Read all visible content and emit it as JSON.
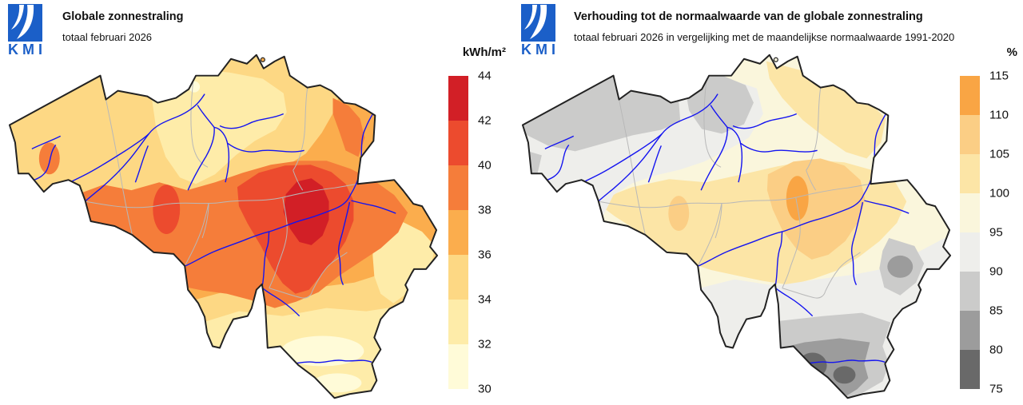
{
  "map": {
    "region": "België / Belgium",
    "border_color": "#222222",
    "river_color": "#1414f0",
    "province_border_color": "#b8b8b8",
    "background": "#ffffff"
  },
  "left_panel": {
    "logo": {
      "text": "KMI",
      "color": "#1b5fc8"
    },
    "title": "Globale zonnestraling",
    "subtitle": "totaal februari 2026",
    "scale": {
      "unit": "kWh/m²",
      "ticks": [
        "44",
        "42",
        "40",
        "38",
        "36",
        "34",
        "32",
        "30"
      ],
      "colors": [
        "#d21f26",
        "#ec4b2e",
        "#f57d3a",
        "#fbad4d",
        "#fdd884",
        "#feeca9",
        "#fffbd8"
      ]
    }
  },
  "right_panel": {
    "logo": {
      "text": "KMI",
      "color": "#1b5fc8"
    },
    "title": "Verhouding tot de normaalwaarde van de globale zonnestraling",
    "subtitle": "totaal februari 2026 in vergelijking met de maandelijkse normaalwaarde 1991-2020",
    "scale": {
      "unit": "%",
      "ticks": [
        "115",
        "110",
        "105",
        "100",
        "95",
        "90",
        "85",
        "80",
        "75"
      ],
      "colors": [
        "#f9a544",
        "#fbce85",
        "#fce5a6",
        "#faf6dc",
        "#eeeeeb",
        "#cbcbca",
        "#9c9c9c",
        "#696969"
      ]
    }
  },
  "chart_data": [
    {
      "type": "heatmap",
      "title": "Globale zonnestraling",
      "subtitle": "totaal februari 2026",
      "unit": "kWh/m²",
      "legend_bins": [
        30,
        32,
        34,
        36,
        38,
        40,
        42,
        44
      ],
      "legend_position": "right",
      "notes": "Filled contour map of Belgium. Maximum 42-44 kWh/m² in the centre-east (Hesbaye region east of Namur); 40-42 there and in a small zone south of Brussels; 38-40 over a broad central band and eastern Limburg; 36-38 over most of Flanders and the west; 34-36 along the northern strip and northern Ardennes; 32-34 over the far north-centre, the eastern border bulge and southern Luxembourg province; 30-32 minima near the southern tip (Gaume) and a tiny north-central spot."
    },
    {
      "type": "heatmap",
      "title": "Verhouding tot de normaalwaarde van de globale zonnestraling",
      "subtitle": "totaal februari 2026 in vergelijking met de maandelijkse normaalwaarde 1991-2020",
      "unit": "%",
      "legend_bins": [
        75,
        80,
        85,
        90,
        95,
        100,
        105,
        110,
        115
      ],
      "legend_position": "right",
      "notes": "Ratio to the 1991-2020 normal. 100-110% over central Belgium with a 110-115% core in the Hesbaye east of Namur and a small >105% spot south of Brussels; 95-100% over most of the centre; 85-95% along the coast, far west and northern border (Antwerp area); 80-95% over the Ardennes grading darker southward; 75-80% minima in two zones near the southern tip."
    }
  ]
}
